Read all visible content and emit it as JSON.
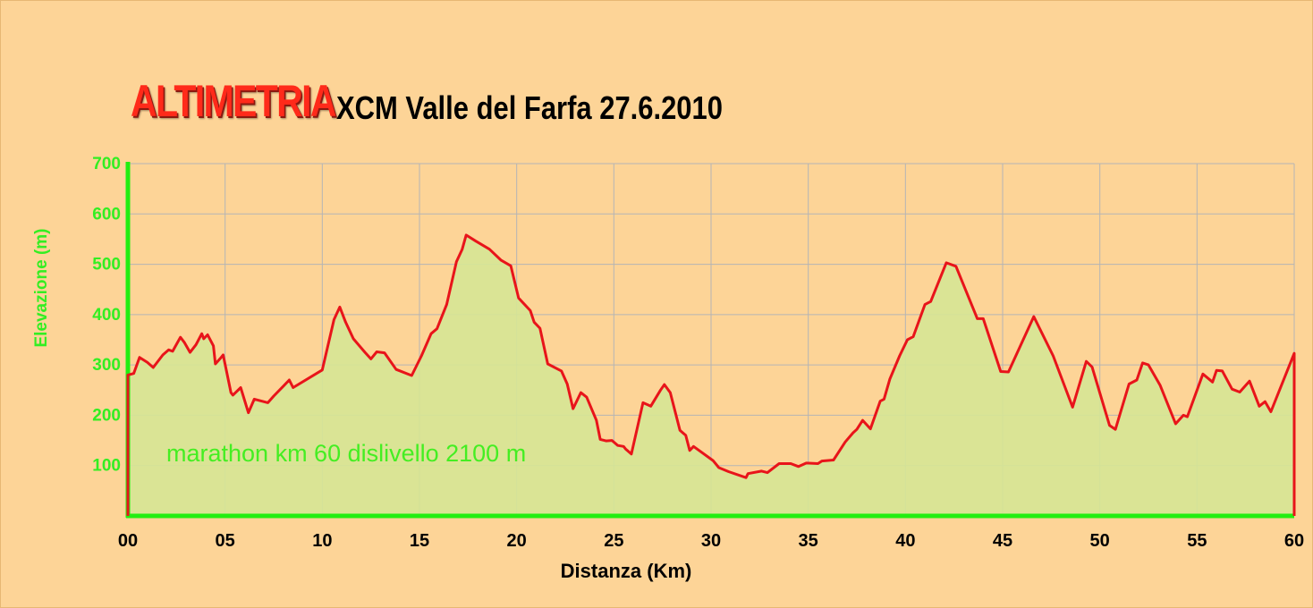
{
  "header": {
    "title": "ALTIMETRIA",
    "subtitle": "XCM Valle del Farfa 27.6.2010"
  },
  "annotation": "marathon km 60 dislivello 2100 m",
  "colors": {
    "background": "#fdd497",
    "line": "#e8141a",
    "fill": "#d6e595",
    "axis": "#22ee11",
    "ytick": "#33ee22",
    "grid": "#b5b5b5",
    "title": "#ff2a1a"
  },
  "chart_data": {
    "type": "area",
    "xlabel": "Distanza (Km)",
    "ylabel": "Elevazione (m)",
    "xlim": [
      0,
      60
    ],
    "ylim": [
      0,
      700
    ],
    "grid": true,
    "x_ticks": [
      {
        "value": 0,
        "label": "00"
      },
      {
        "value": 5,
        "label": "05"
      },
      {
        "value": 10,
        "label": "10"
      },
      {
        "value": 15,
        "label": "15"
      },
      {
        "value": 20,
        "label": "20"
      },
      {
        "value": 25,
        "label": "25"
      },
      {
        "value": 30,
        "label": "30"
      },
      {
        "value": 35,
        "label": "35"
      },
      {
        "value": 40,
        "label": "40"
      },
      {
        "value": 45,
        "label": "45"
      },
      {
        "value": 50,
        "label": "50"
      },
      {
        "value": 55,
        "label": "55"
      },
      {
        "value": 60,
        "label": "60"
      }
    ],
    "y_ticks": [
      {
        "value": 100,
        "label": "100"
      },
      {
        "value": 200,
        "label": "200"
      },
      {
        "value": 300,
        "label": "300"
      },
      {
        "value": 400,
        "label": "400"
      },
      {
        "value": 500,
        "label": "500"
      },
      {
        "value": 600,
        "label": "600"
      },
      {
        "value": 700,
        "label": "700"
      }
    ],
    "points": [
      [
        0,
        280
      ],
      [
        0.3,
        283
      ],
      [
        0.6,
        315
      ],
      [
        1.0,
        305
      ],
      [
        1.3,
        295
      ],
      [
        1.8,
        320
      ],
      [
        2.1,
        330
      ],
      [
        2.3,
        327
      ],
      [
        2.7,
        355
      ],
      [
        2.9,
        345
      ],
      [
        3.2,
        325
      ],
      [
        3.5,
        340
      ],
      [
        3.8,
        362
      ],
      [
        3.9,
        352
      ],
      [
        4.1,
        360
      ],
      [
        4.4,
        338
      ],
      [
        4.5,
        302
      ],
      [
        4.8,
        315
      ],
      [
        4.9,
        320
      ],
      [
        5.3,
        245
      ],
      [
        5.4,
        240
      ],
      [
        5.8,
        255
      ],
      [
        6.2,
        205
      ],
      [
        6.5,
        232
      ],
      [
        7.2,
        225
      ],
      [
        7.5,
        238
      ],
      [
        8.0,
        258
      ],
      [
        8.3,
        270
      ],
      [
        8.5,
        255
      ],
      [
        10.0,
        290
      ],
      [
        10.6,
        390
      ],
      [
        10.9,
        415
      ],
      [
        11.2,
        385
      ],
      [
        11.6,
        352
      ],
      [
        12.2,
        325
      ],
      [
        12.5,
        312
      ],
      [
        12.8,
        326
      ],
      [
        13.2,
        324
      ],
      [
        13.8,
        291
      ],
      [
        14.6,
        279
      ],
      [
        15.1,
        318
      ],
      [
        15.6,
        362
      ],
      [
        15.9,
        372
      ],
      [
        16.4,
        420
      ],
      [
        16.9,
        505
      ],
      [
        17.2,
        530
      ],
      [
        17.4,
        558
      ],
      [
        17.9,
        546
      ],
      [
        18.6,
        530
      ],
      [
        19.2,
        508
      ],
      [
        19.7,
        497
      ],
      [
        20.1,
        433
      ],
      [
        20.7,
        408
      ],
      [
        20.9,
        385
      ],
      [
        21.2,
        373
      ],
      [
        21.6,
        302
      ],
      [
        22.3,
        288
      ],
      [
        22.6,
        262
      ],
      [
        22.9,
        213
      ],
      [
        23.3,
        245
      ],
      [
        23.6,
        236
      ],
      [
        24.1,
        190
      ],
      [
        24.3,
        152
      ],
      [
        24.6,
        149
      ],
      [
        24.9,
        150
      ],
      [
        25.2,
        140
      ],
      [
        25.5,
        138
      ],
      [
        25.6,
        133
      ],
      [
        25.9,
        123
      ],
      [
        26.5,
        225
      ],
      [
        26.9,
        218
      ],
      [
        27.4,
        250
      ],
      [
        27.6,
        261
      ],
      [
        27.9,
        245
      ],
      [
        28.4,
        170
      ],
      [
        28.7,
        160
      ],
      [
        28.9,
        130
      ],
      [
        29.1,
        138
      ],
      [
        30.1,
        110
      ],
      [
        30.4,
        96
      ],
      [
        30.9,
        88
      ],
      [
        31.8,
        76
      ],
      [
        31.9,
        84
      ],
      [
        32.6,
        89
      ],
      [
        32.9,
        86
      ],
      [
        33.5,
        104
      ],
      [
        34.1,
        104
      ],
      [
        34.5,
        98
      ],
      [
        34.9,
        105
      ],
      [
        35.5,
        104
      ],
      [
        35.7,
        109
      ],
      [
        36.3,
        111
      ],
      [
        36.9,
        147
      ],
      [
        37.3,
        165
      ],
      [
        37.5,
        172
      ],
      [
        37.8,
        190
      ],
      [
        38.2,
        173
      ],
      [
        38.7,
        228
      ],
      [
        38.9,
        232
      ],
      [
        39.2,
        272
      ],
      [
        39.7,
        318
      ],
      [
        40.1,
        350
      ],
      [
        40.4,
        356
      ],
      [
        41.0,
        420
      ],
      [
        41.3,
        426
      ],
      [
        42.1,
        503
      ],
      [
        42.6,
        496
      ],
      [
        43.7,
        392
      ],
      [
        44.0,
        392
      ],
      [
        44.9,
        287
      ],
      [
        45.3,
        286
      ],
      [
        46.6,
        396
      ],
      [
        47.6,
        318
      ],
      [
        48.6,
        216
      ],
      [
        49.3,
        307
      ],
      [
        49.6,
        296
      ],
      [
        50.5,
        180
      ],
      [
        50.8,
        172
      ],
      [
        51.5,
        262
      ],
      [
        51.9,
        270
      ],
      [
        52.2,
        304
      ],
      [
        52.5,
        300
      ],
      [
        53.1,
        260
      ],
      [
        53.9,
        183
      ],
      [
        54.3,
        200
      ],
      [
        54.5,
        197
      ],
      [
        55.3,
        282
      ],
      [
        55.8,
        266
      ],
      [
        56.0,
        289
      ],
      [
        56.3,
        288
      ],
      [
        56.8,
        252
      ],
      [
        57.2,
        246
      ],
      [
        57.7,
        268
      ],
      [
        58.2,
        218
      ],
      [
        58.5,
        227
      ],
      [
        58.8,
        207
      ],
      [
        60,
        323
      ]
    ]
  }
}
